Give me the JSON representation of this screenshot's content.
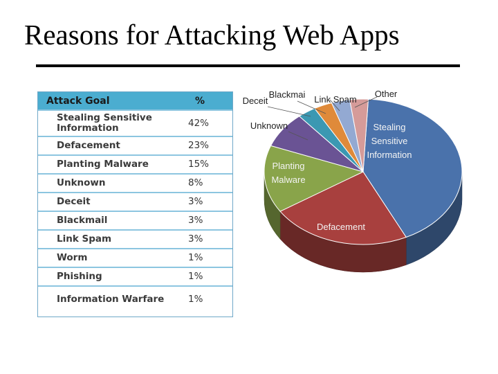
{
  "slide": {
    "title": "Reasons for Attacking Web Apps"
  },
  "table": {
    "headers": {
      "goal": "Attack Goal",
      "pct": "%"
    },
    "rows": [
      {
        "goal": "Stealing Sensitive Information",
        "pct": "42%"
      },
      {
        "goal": "Defacement",
        "pct": "23%"
      },
      {
        "goal": "Planting Malware",
        "pct": "15%"
      },
      {
        "goal": "Unknown",
        "pct": "8%"
      },
      {
        "goal": "Deceit",
        "pct": "3%"
      },
      {
        "goal": "Blackmail",
        "pct": "3%"
      },
      {
        "goal": "Link Spam",
        "pct": "3%"
      },
      {
        "goal": "Worm",
        "pct": "1%"
      },
      {
        "goal": "Phishing",
        "pct": "1%"
      },
      {
        "goal": "Information Warfare",
        "pct": "1%"
      }
    ]
  },
  "chart_data": {
    "type": "pie",
    "title": "",
    "slices": [
      {
        "label": "Stealing Sensitive Information",
        "value": 42,
        "color": "#4a72ab"
      },
      {
        "label": "Defacement",
        "value": 23,
        "color": "#a8403e"
      },
      {
        "label": "Planting Malware",
        "value": 15,
        "color": "#89a44a"
      },
      {
        "label": "Unknown",
        "value": 8,
        "color": "#6a5394"
      },
      {
        "label": "Deceit",
        "value": 3,
        "color": "#3b98b2"
      },
      {
        "label": "Blackmai",
        "value": 3,
        "color": "#df8a3a"
      },
      {
        "label": "Link Spam",
        "value": 3,
        "color": "#93a9d2"
      },
      {
        "label": "Other",
        "value": 3,
        "color": "#d59b99"
      }
    ],
    "style": "3d",
    "legend": "none"
  }
}
